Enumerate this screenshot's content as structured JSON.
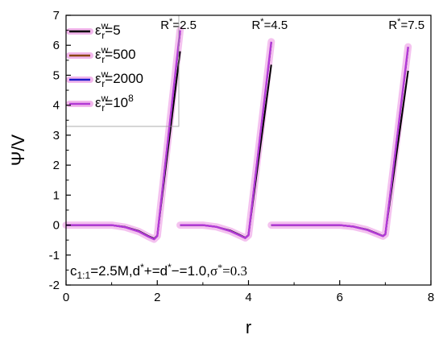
{
  "chart_data": {
    "type": "line",
    "xlabel": "r",
    "ylabel": "Ψ/V",
    "xlim": [
      0,
      8
    ],
    "ylim": [
      -2,
      7
    ],
    "xticks": [
      "0",
      "2",
      "4",
      "6",
      "8"
    ],
    "yticks": [
      "-2",
      "-1",
      "0",
      "1",
      "2",
      "3",
      "4",
      "5",
      "6",
      "7"
    ],
    "grid": false,
    "legend_position": "top-left",
    "legend": [
      {
        "sym": "ε",
        "sup": "w",
        "sub": "r",
        "val": "=5",
        "color": "#000000"
      },
      {
        "sym": "ε",
        "sup": "w",
        "sub": "r",
        "val": "=500",
        "color": "#8b4513"
      },
      {
        "sym": "ε",
        "sup": "w",
        "sub": "r",
        "val": "=2000",
        "color": "#1a1acd"
      },
      {
        "sym": "ε",
        "sup": "w",
        "sub": "r",
        "val": "=10",
        "valsup": "8",
        "color": "#b23ad6"
      }
    ],
    "annotations": [
      {
        "base": "R",
        "sup": "*",
        "rest": "=2.5",
        "x": 2.5,
        "y": 6.55
      },
      {
        "base": "R",
        "sup": "*",
        "rest": "=4.5",
        "x": 4.5,
        "y": 6.55
      },
      {
        "base": "R",
        "sup": "*",
        "rest": "=7.5",
        "x": 7.5,
        "y": 6.55
      }
    ],
    "condition": {
      "c": "c",
      "c_sub": "1:1",
      "rest1": "=2.5M,d",
      "sup1": "*",
      "rest2": "+=d",
      "sup2": "*",
      "rest3": "−=1.0,",
      "sigma": "σ",
      "sup3": "*",
      "rest4": "=0.3"
    },
    "groups": [
      {
        "R": 2.5,
        "series": [
          {
            "name": "ε^w_r=5",
            "color": "#000000",
            "x": [
              0,
              1.0,
              1.3,
              1.6,
              1.8,
              1.93,
              2.0,
              2.5
            ],
            "y": [
              0,
              0,
              -0.06,
              -0.2,
              -0.36,
              -0.45,
              -0.35,
              5.8
            ]
          },
          {
            "name": "ε^w_r=500",
            "color": "#8b4513",
            "x": [
              0,
              1.0,
              1.3,
              1.6,
              1.8,
              1.93,
              2.0,
              2.5
            ],
            "y": [
              0,
              0,
              -0.07,
              -0.22,
              -0.38,
              -0.47,
              -0.36,
              6.45
            ]
          },
          {
            "name": "ε^w_r=2000",
            "color": "#1a1acd",
            "x": [
              0,
              1.0,
              1.3,
              1.6,
              1.8,
              1.93,
              2.0,
              2.5
            ],
            "y": [
              0,
              0,
              -0.07,
              -0.22,
              -0.38,
              -0.47,
              -0.36,
              6.47
            ]
          },
          {
            "name": "ε^w_r=10^8",
            "color": "#b23ad6",
            "x": [
              0,
              1.0,
              1.3,
              1.6,
              1.8,
              1.93,
              2.0,
              2.5
            ],
            "y": [
              0,
              0,
              -0.07,
              -0.22,
              -0.38,
              -0.47,
              -0.36,
              6.5
            ]
          }
        ]
      },
      {
        "R": 4.5,
        "series": [
          {
            "name": "ε^w_r=5",
            "color": "#000000",
            "x": [
              2.5,
              3.0,
              3.3,
              3.6,
              3.8,
              3.93,
              4.0,
              4.5
            ],
            "y": [
              0,
              0,
              -0.06,
              -0.18,
              -0.32,
              -0.42,
              -0.33,
              5.35
            ]
          },
          {
            "name": "ε^w_r=500",
            "color": "#8b4513",
            "x": [
              2.5,
              3.0,
              3.3,
              3.6,
              3.8,
              3.93,
              4.0,
              4.5
            ],
            "y": [
              0,
              0,
              -0.06,
              -0.2,
              -0.34,
              -0.43,
              -0.34,
              6.08
            ]
          },
          {
            "name": "ε^w_r=2000",
            "color": "#1a1acd",
            "x": [
              2.5,
              3.0,
              3.3,
              3.6,
              3.8,
              3.93,
              4.0,
              4.5
            ],
            "y": [
              0,
              0,
              -0.06,
              -0.2,
              -0.34,
              -0.43,
              -0.34,
              6.1
            ]
          },
          {
            "name": "ε^w_r=10^8",
            "color": "#b23ad6",
            "x": [
              2.5,
              3.0,
              3.3,
              3.6,
              3.8,
              3.93,
              4.0,
              4.5
            ],
            "y": [
              0,
              0,
              -0.06,
              -0.2,
              -0.34,
              -0.43,
              -0.34,
              6.12
            ]
          }
        ]
      },
      {
        "R": 7.5,
        "series": [
          {
            "name": "ε^w_r=5",
            "color": "#000000",
            "x": [
              4.5,
              6.0,
              6.3,
              6.6,
              6.8,
              6.95,
              7.0,
              7.5
            ],
            "y": [
              0,
              0,
              -0.05,
              -0.15,
              -0.27,
              -0.36,
              -0.3,
              5.15
            ]
          },
          {
            "name": "ε^w_r=500",
            "color": "#8b4513",
            "x": [
              4.5,
              6.0,
              6.3,
              6.6,
              6.8,
              6.95,
              7.0,
              7.5
            ],
            "y": [
              0,
              0,
              -0.05,
              -0.16,
              -0.28,
              -0.37,
              -0.31,
              5.9
            ]
          },
          {
            "name": "ε^w_r=2000",
            "color": "#1a1acd",
            "x": [
              4.5,
              6.0,
              6.3,
              6.6,
              6.8,
              6.95,
              7.0,
              7.5
            ],
            "y": [
              0,
              0,
              -0.05,
              -0.16,
              -0.28,
              -0.37,
              -0.31,
              5.93
            ]
          },
          {
            "name": "ε^w_r=10^8",
            "color": "#b23ad6",
            "x": [
              4.5,
              6.0,
              6.3,
              6.6,
              6.8,
              6.95,
              7.0,
              7.5
            ],
            "y": [
              0,
              0,
              -0.05,
              -0.16,
              -0.28,
              -0.37,
              -0.31,
              5.95
            ]
          }
        ]
      }
    ]
  }
}
